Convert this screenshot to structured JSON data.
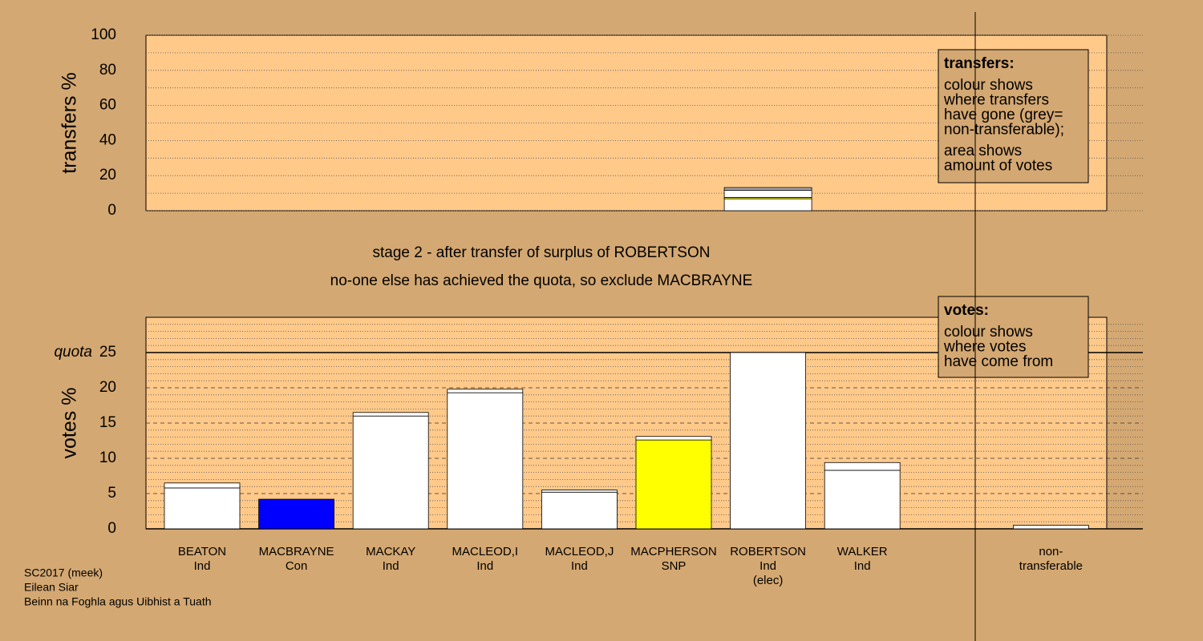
{
  "chart_data": [
    {
      "type": "bar",
      "ylabel": "transfers %",
      "ylim": [
        0,
        100
      ],
      "yticks": [
        0,
        20,
        40,
        60,
        80,
        100
      ],
      "yminorticks": [
        10,
        30,
        50,
        70,
        90
      ],
      "series": [
        {
          "color": "#ffffff",
          "values": [
            null,
            null,
            null,
            null,
            null,
            null,
            6.8,
            null,
            null,
            null
          ]
        },
        {
          "color": "#ffff00",
          "values": [
            null,
            null,
            null,
            null,
            null,
            null,
            0.8,
            null,
            null,
            null
          ]
        },
        {
          "color": "#ffffff",
          "values": [
            null,
            null,
            null,
            null,
            null,
            null,
            4.1,
            null,
            null,
            null
          ]
        },
        {
          "color": "#aaaaaa",
          "values": [
            null,
            null,
            null,
            null,
            null,
            null,
            1.5,
            null,
            null,
            null
          ]
        }
      ],
      "legend_title": "transfers:",
      "legend_text": [
        [
          "colour shows",
          "where transfers",
          "have gone (grey=",
          "non-transferable);"
        ],
        [
          "area shows",
          "amount of votes"
        ]
      ]
    },
    {
      "type": "bar",
      "title": [
        "stage 2 - after transfer of surplus of ROBERTSON",
        "no-one else has achieved the quota, so exclude MACBRAYNE"
      ],
      "ylabel": "votes %",
      "ylim": [
        0,
        30
      ],
      "yticks": [
        0,
        5,
        10,
        15,
        20,
        25
      ],
      "yminorticks": [
        1,
        2,
        3,
        4,
        6,
        7,
        8,
        9,
        11,
        12,
        13,
        14,
        16,
        17,
        18,
        19,
        21,
        22,
        23,
        24,
        26,
        27,
        28,
        29
      ],
      "quota": 25,
      "quota_label": "quota",
      "categories": [
        [
          "BEATON",
          "Ind"
        ],
        [
          "MACBRAYNE",
          "Con"
        ],
        [
          "MACKAY",
          "Ind"
        ],
        [
          "MACLEOD,I",
          "Ind"
        ],
        [
          "MACLEOD,J",
          "Ind"
        ],
        [
          "MACPHERSON",
          "SNP"
        ],
        [
          "ROBERTSON",
          "Ind",
          "(elec)"
        ],
        [
          "WALKER",
          "Ind"
        ],
        null,
        [
          "non-",
          "transferable"
        ]
      ],
      "series": [
        {
          "colors": [
            "#ffffff",
            "#0000ff",
            "#ffffff",
            "#ffffff",
            "#ffffff",
            "#ffff00",
            "#ffffff",
            "#ffffff",
            null,
            "#ffffff"
          ],
          "values": [
            5.8,
            4.2,
            16.0,
            19.3,
            5.2,
            12.6,
            25.0,
            8.3,
            null,
            0
          ]
        },
        {
          "color": "#ffffff",
          "values": [
            0.7,
            0,
            0.5,
            0.5,
            0.3,
            0.5,
            0,
            1.1,
            null,
            0.5
          ]
        }
      ],
      "legend_title": "votes:",
      "legend_text": [
        [
          "colour shows",
          "where votes",
          "have come from"
        ]
      ]
    }
  ],
  "footer": [
    "SC2017 (meek)",
    "Eilean Siar",
    "Beinn na Foghla agus Uibhist a Tuath"
  ]
}
